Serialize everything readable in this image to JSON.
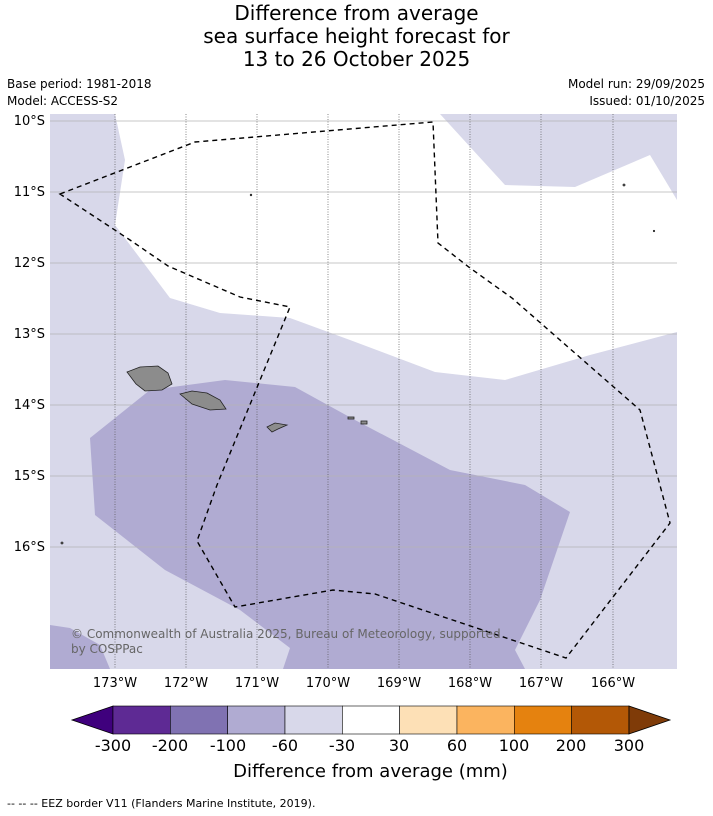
{
  "title": {
    "lines": [
      "Difference from average",
      "sea surface height forecast for",
      "13 to 26 October 2025"
    ]
  },
  "meta": {
    "base_period": "Base period: 1981-2018",
    "model": "Model: ACCESS-S2",
    "model_run": "Model run: 29/09/2025",
    "issued": "Issued: 01/10/2025"
  },
  "map": {
    "lat_labels": [
      "10°S",
      "11°S",
      "12°S",
      "13°S",
      "14°S",
      "15°S",
      "16°S"
    ],
    "lon_labels": [
      "173°W",
      "172°W",
      "171°W",
      "170°W",
      "169°W",
      "168°W",
      "167°W",
      "166°W"
    ],
    "copyright_lines": [
      "© Commonwealth of Australia 2025, Bureau of Meteorology, supported",
      "by COSPPac"
    ],
    "colors": {
      "land": "#8c8c8c",
      "level_minus60_minus30": "#d8d8ea",
      "level_minus100_minus60": "#b0abd2"
    }
  },
  "colorbar": {
    "tick_labels": [
      "-300",
      "-200",
      "-100",
      "-60",
      "-30",
      "30",
      "60",
      "100",
      "200",
      "300"
    ],
    "colors": [
      "#3f007d",
      "#5e2a94",
      "#8072b2",
      "#b0abd2",
      "#d8d8ea",
      "#ffffff",
      "#fde0b6",
      "#fbb45f",
      "#e5820f",
      "#b35806",
      "#7f3b08"
    ],
    "xlabel": "Difference from average (mm)"
  },
  "footer": "--  --  -- EEZ border V11 (Flanders Marine Institute, 2019)."
}
